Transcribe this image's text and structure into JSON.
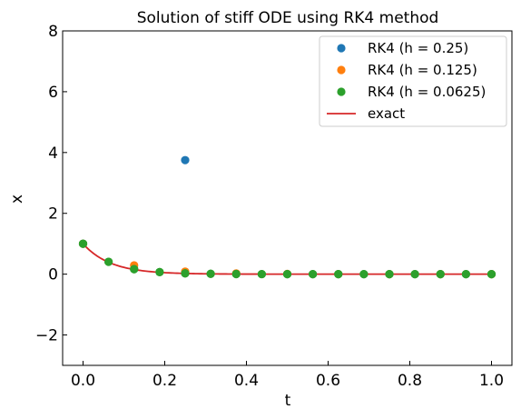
{
  "chart_data": {
    "type": "scatter",
    "title": "Solution of stiff ODE using RK4 method",
    "xlabel": "t",
    "ylabel": "x",
    "xlim": [
      -0.05,
      1.05
    ],
    "ylim": [
      -3,
      8
    ],
    "xticks": [
      0.0,
      0.2,
      0.4,
      0.6,
      0.8,
      1.0
    ],
    "xtick_labels": [
      "0.0",
      "0.2",
      "0.4",
      "0.6",
      "0.8",
      "1.0"
    ],
    "yticks": [
      -2,
      0,
      2,
      4,
      6,
      8
    ],
    "ytick_labels": [
      "−2",
      "0",
      "2",
      "4",
      "6",
      "8"
    ],
    "legend_position": "top-right",
    "grid": false,
    "series": [
      {
        "name": "RK4 (h = 0.25)",
        "kind": "markers",
        "color": "#1f77b4",
        "x": [
          0.0,
          0.25
        ],
        "y": [
          1.0,
          3.75
        ]
      },
      {
        "name": "RK4 (h = 0.125)",
        "kind": "markers",
        "color": "#ff7f0e",
        "x": [
          0.0,
          0.125,
          0.25,
          0.375,
          0.5,
          0.625,
          0.75,
          0.875,
          1.0
        ],
        "y": [
          1.0,
          0.29,
          0.085,
          0.025,
          0.007,
          0.002,
          0.0006,
          0.0002,
          0.0001
        ]
      },
      {
        "name": "RK4 (h = 0.0625)",
        "kind": "markers",
        "color": "#2ca02c",
        "x": [
          0.0,
          0.0625,
          0.125,
          0.1875,
          0.25,
          0.3125,
          0.375,
          0.4375,
          0.5,
          0.5625,
          0.625,
          0.6875,
          0.75,
          0.8125,
          0.875,
          0.9375,
          1.0
        ],
        "y": [
          1.0,
          0.406,
          0.165,
          0.067,
          0.027,
          0.011,
          0.0045,
          0.0018,
          0.0007,
          0.0003,
          0.0001,
          0.0,
          0.0,
          0.0,
          0.0,
          0.0,
          0.0
        ]
      },
      {
        "name": "exact",
        "kind": "line",
        "color": "#d62728",
        "function": "exp(-15t)",
        "x": [
          0.0,
          0.02,
          0.04,
          0.06,
          0.08,
          0.1,
          0.12,
          0.14,
          0.16,
          0.18,
          0.2,
          0.25,
          0.3,
          0.35,
          0.4,
          0.5,
          0.6,
          0.7,
          0.8,
          0.9,
          1.0
        ],
        "y": [
          1.0,
          0.741,
          0.549,
          0.407,
          0.301,
          0.223,
          0.165,
          0.122,
          0.091,
          0.067,
          0.05,
          0.024,
          0.011,
          0.005,
          0.002,
          0.0006,
          0.0001,
          0.0,
          0.0,
          0.0,
          0.0
        ]
      }
    ]
  }
}
